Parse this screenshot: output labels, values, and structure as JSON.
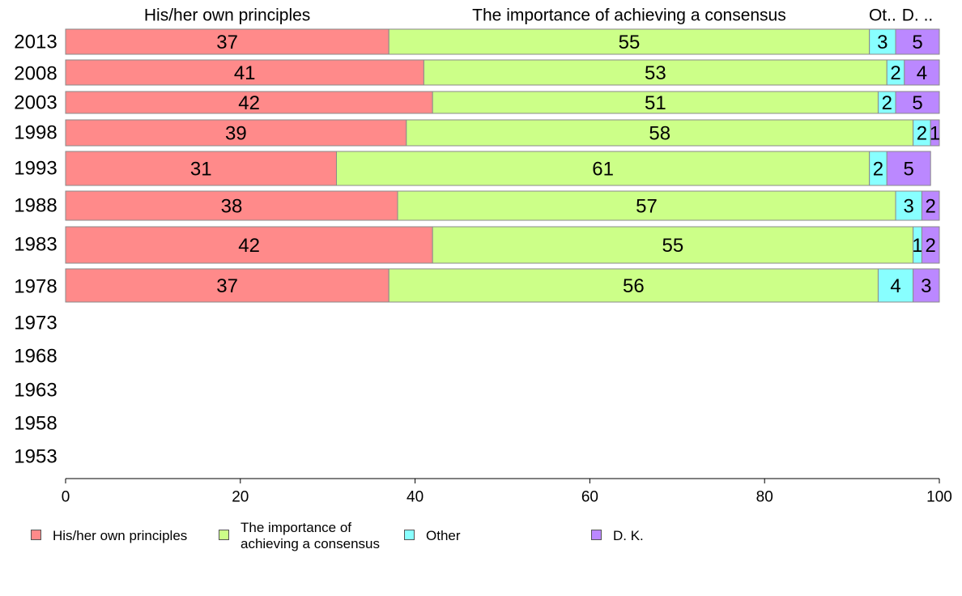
{
  "chart_data": {
    "type": "bar",
    "orientation": "horizontal",
    "stacked": true,
    "categories": [
      "2013",
      "2008",
      "2003",
      "1998",
      "1993",
      "1988",
      "1983",
      "1978",
      "1973",
      "1968",
      "1963",
      "1958",
      "1953"
    ],
    "series": [
      {
        "name": "His/her own principles",
        "color": "#ff8a8a",
        "values": [
          37,
          41,
          42,
          39,
          31,
          38,
          42,
          37,
          null,
          null,
          null,
          null,
          null
        ]
      },
      {
        "name": "The importance of achieving a consensus",
        "color": "#ccff88",
        "values": [
          55,
          53,
          51,
          58,
          61,
          57,
          55,
          56,
          null,
          null,
          null,
          null,
          null
        ]
      },
      {
        "name": "Other",
        "color": "#88ffff",
        "values": [
          3,
          2,
          2,
          2,
          2,
          3,
          1,
          4,
          null,
          null,
          null,
          null,
          null
        ]
      },
      {
        "name": "D. K.",
        "color": "#bb88ff",
        "values": [
          5,
          4,
          5,
          1,
          5,
          2,
          2,
          3,
          null,
          null,
          null,
          null,
          null
        ]
      }
    ],
    "top_labels": [
      "His/her own principles",
      "The importance of achieving a consensus",
      "Ot..",
      "D. .."
    ],
    "legend_labels": [
      "His/her own principles",
      "The importance of\nachieving a consensus",
      "Other",
      "D. K."
    ],
    "xlim": [
      0,
      100
    ],
    "xticks": [
      0,
      20,
      40,
      60,
      80,
      100
    ],
    "grid": false,
    "legend_position": "bottom"
  }
}
